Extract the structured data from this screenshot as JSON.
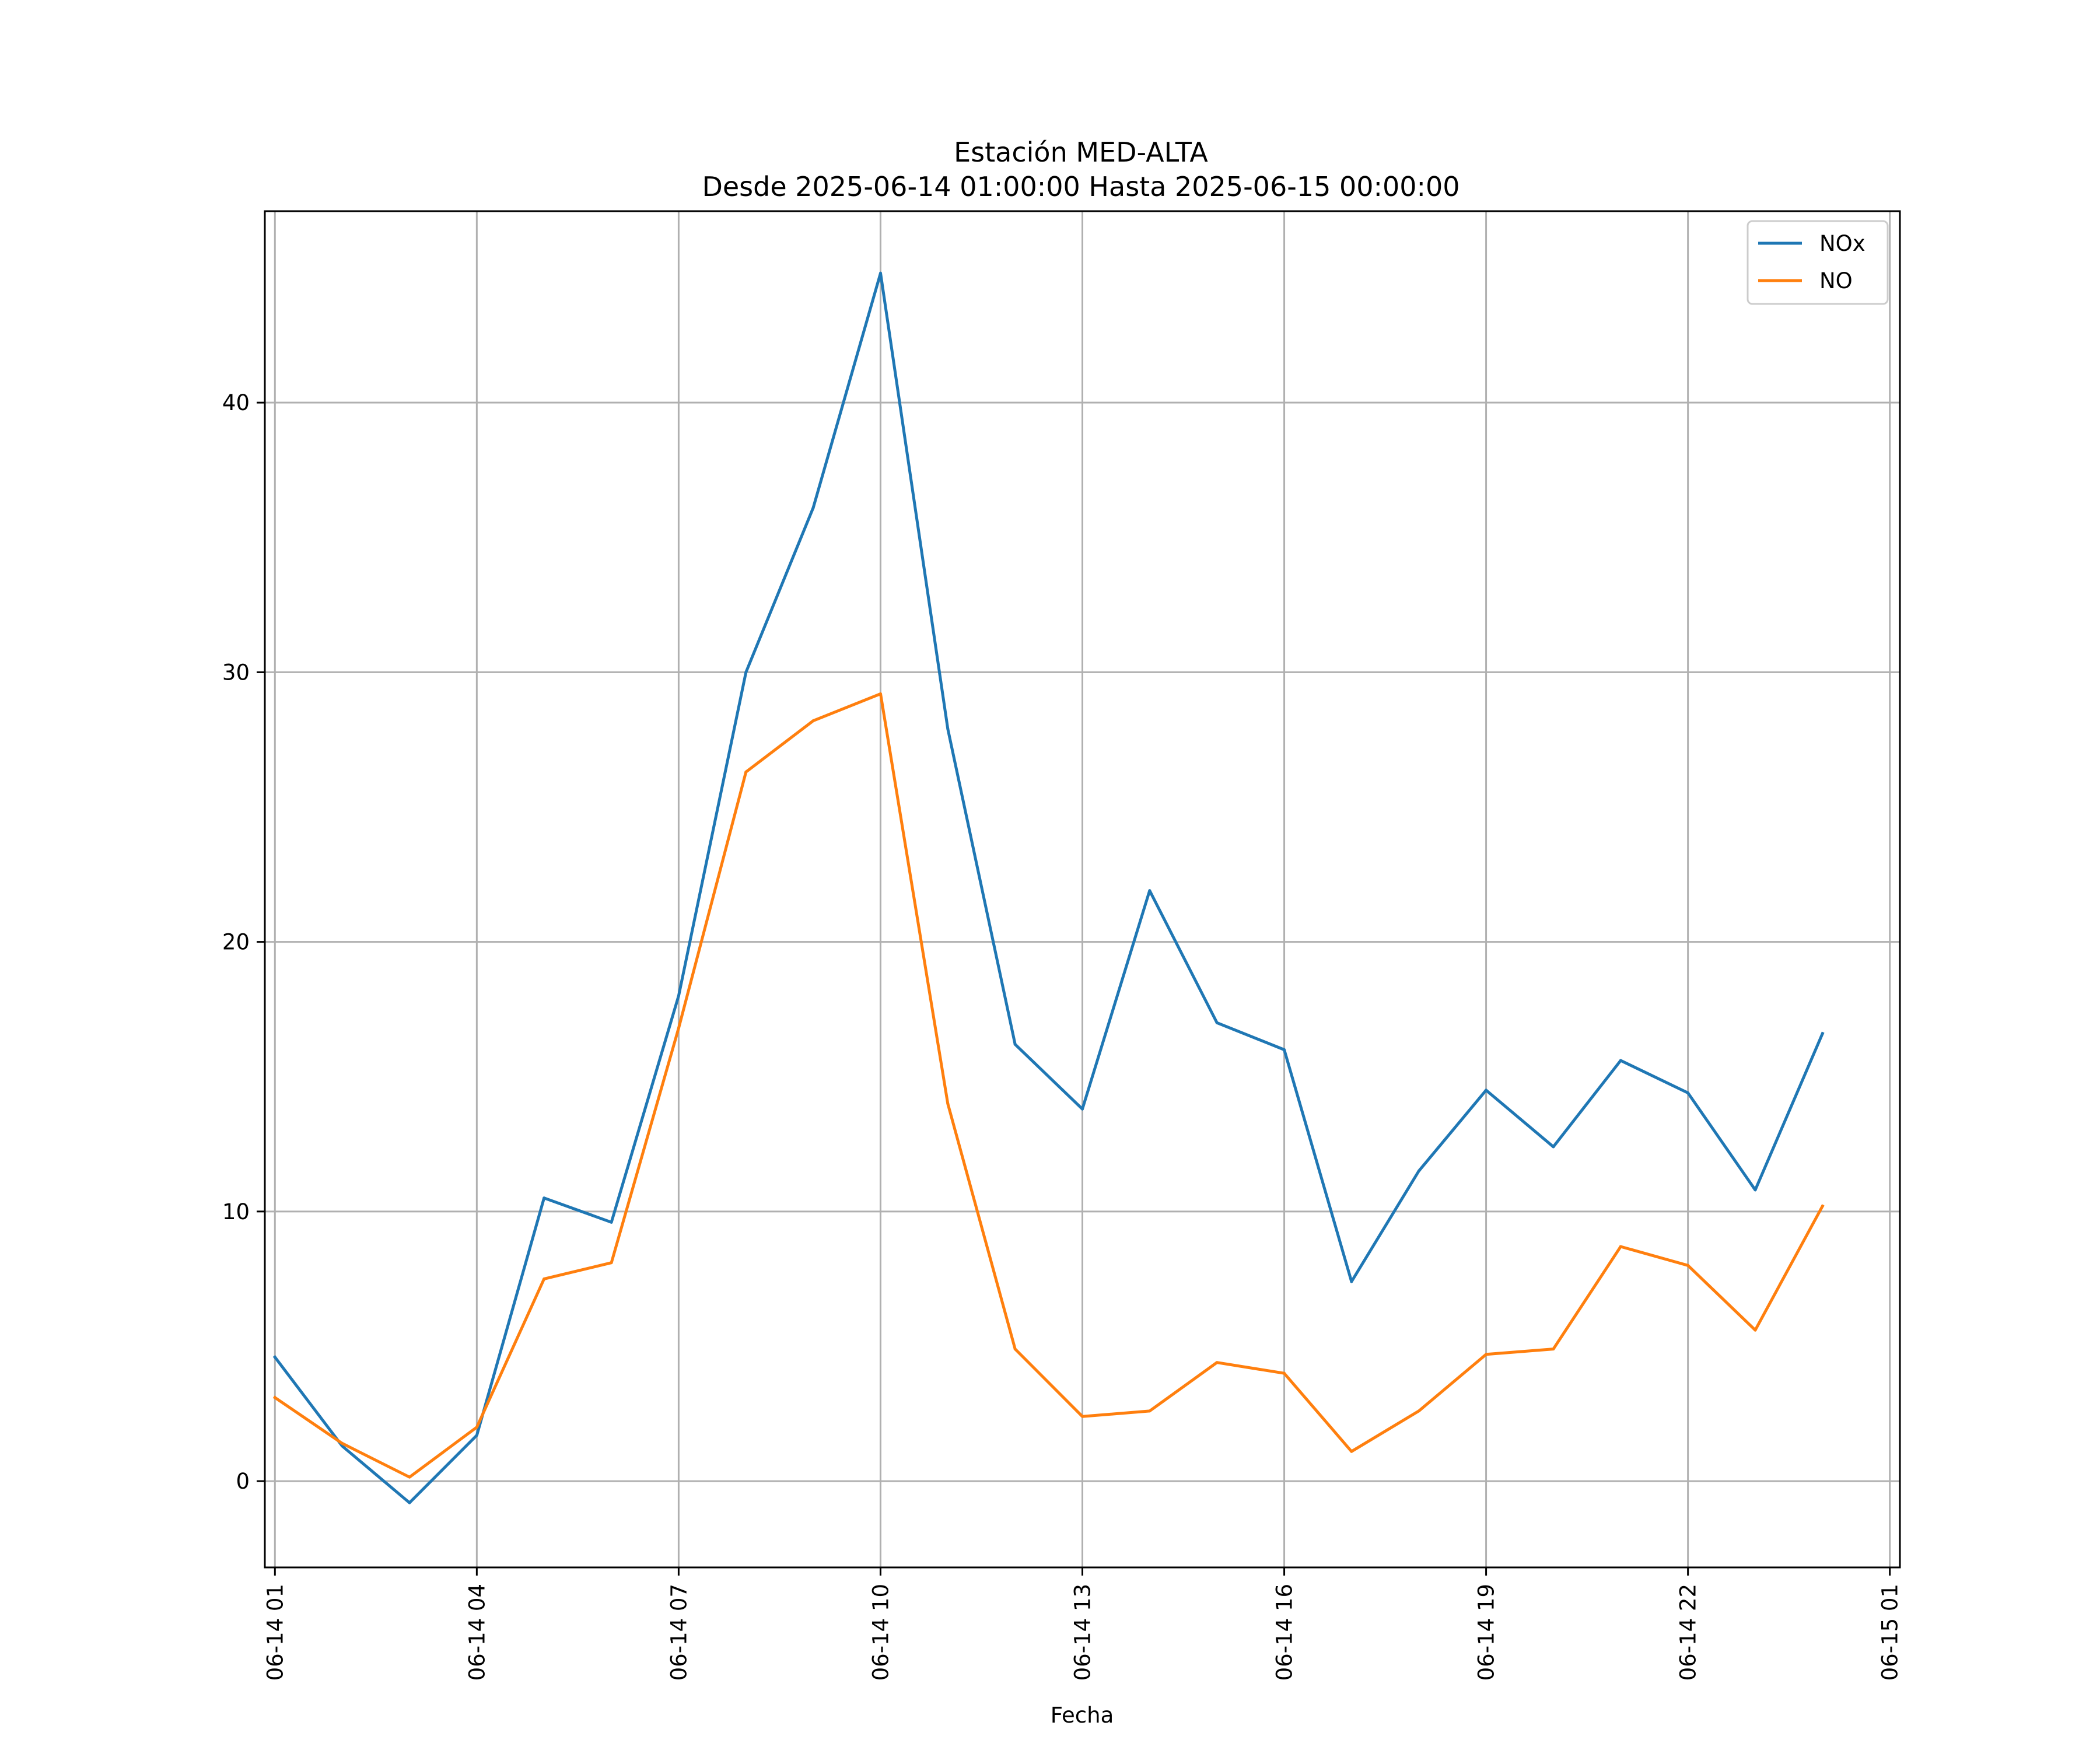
{
  "chart_data": {
    "type": "line",
    "title": "Estación MED-ALTA",
    "subtitle": "Desde 2025-06-14 01:00:00 Hasta 2025-06-15 00:00:00",
    "xlabel": "Fecha",
    "ylabel": "",
    "x": [
      "2025-06-14 01:00",
      "2025-06-14 02:00",
      "2025-06-14 03:00",
      "2025-06-14 04:00",
      "2025-06-14 05:00",
      "2025-06-14 06:00",
      "2025-06-14 07:00",
      "2025-06-14 08:00",
      "2025-06-14 09:00",
      "2025-06-14 10:00",
      "2025-06-14 11:00",
      "2025-06-14 12:00",
      "2025-06-14 13:00",
      "2025-06-14 14:00",
      "2025-06-14 15:00",
      "2025-06-14 16:00",
      "2025-06-14 17:00",
      "2025-06-14 18:00",
      "2025-06-14 19:00",
      "2025-06-14 20:00",
      "2025-06-14 21:00",
      "2025-06-14 22:00",
      "2025-06-14 23:00",
      "2025-06-15 00:00"
    ],
    "xlim": [
      "2025-06-14 00:51",
      "2025-06-15 01:09"
    ],
    "ylim": [
      -3.2,
      47.1
    ],
    "xticks": [
      "2025-06-14 01:00",
      "2025-06-14 04:00",
      "2025-06-14 07:00",
      "2025-06-14 10:00",
      "2025-06-14 13:00",
      "2025-06-14 16:00",
      "2025-06-14 19:00",
      "2025-06-14 22:00",
      "2025-06-15 01:00"
    ],
    "xtick_labels": [
      "06-14 01",
      "06-14 04",
      "06-14 07",
      "06-14 10",
      "06-14 13",
      "06-14 16",
      "06-14 19",
      "06-14 22",
      "06-15 01"
    ],
    "yticks": [
      0,
      10,
      20,
      30,
      40
    ],
    "ytick_labels": [
      "0",
      "10",
      "20",
      "30",
      "40"
    ],
    "grid": true,
    "legend_position": "top-right",
    "series": [
      {
        "name": "NOx",
        "color": "#1f77b4",
        "values": [
          4.6,
          1.3,
          -0.8,
          1.7,
          10.5,
          9.6,
          18.0,
          30.0,
          36.1,
          44.8,
          27.9,
          16.2,
          13.8,
          21.9,
          17.0,
          16.0,
          7.4,
          11.5,
          14.5,
          12.4,
          15.6,
          14.4,
          10.8,
          16.6
        ]
      },
      {
        "name": "NO",
        "color": "#ff7f0e",
        "values": [
          3.1,
          1.4,
          0.15,
          2.0,
          7.5,
          8.1,
          16.8,
          26.3,
          28.2,
          29.2,
          14.0,
          4.9,
          2.4,
          2.6,
          4.4,
          4.0,
          1.1,
          2.6,
          4.7,
          4.9,
          8.7,
          8.0,
          5.6,
          10.2
        ]
      }
    ]
  }
}
